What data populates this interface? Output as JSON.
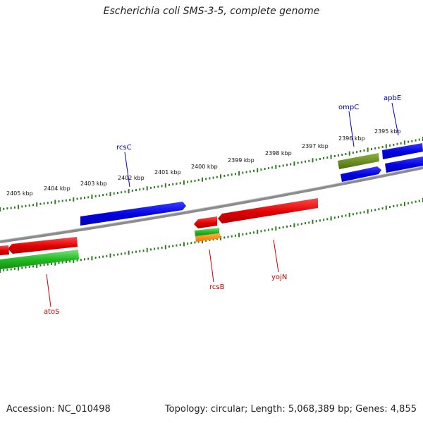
{
  "title": "Escherichia coli SMS-3-5, complete genome",
  "footer": {
    "accession": "Accession: NC_010498",
    "topology": "Topology: circular; Length: 5,068,389 bp; Genes: 4,855"
  },
  "ticks": [
    "2405 kbp",
    "2404 kbp",
    "2403 kbp",
    "2402 kbp",
    "2401 kbp",
    "2400 kbp",
    "2399 kbp",
    "2398 kbp",
    "2397 kbp",
    "2396 kbp",
    "2395 kbp"
  ],
  "genes": [
    {
      "label": "rcsC",
      "strand": "forward",
      "color": "#0000cc"
    },
    {
      "label": "ompC",
      "strand": "reverse-outer",
      "color": "#0000cc"
    },
    {
      "label": "apbE",
      "strand": "reverse-outer",
      "color": "#0000cc"
    },
    {
      "label": "rcsB",
      "strand": "reverse",
      "color": "#cc0000"
    },
    {
      "label": "yojN",
      "strand": "reverse",
      "color": "#cc0000"
    },
    {
      "label": "atoS",
      "strand": "reverse",
      "color": "#cc0000"
    }
  ],
  "colors": {
    "cds_blue": "#0000e0",
    "cds_red": "#e00000",
    "gene_green": "#22bb22",
    "olive": "#6b8e23",
    "orange": "#ff8800",
    "tick_green": "#2d7d1e",
    "backbone": "#888888",
    "label_blue": "#0000aa",
    "label_red": "#cc0000"
  }
}
